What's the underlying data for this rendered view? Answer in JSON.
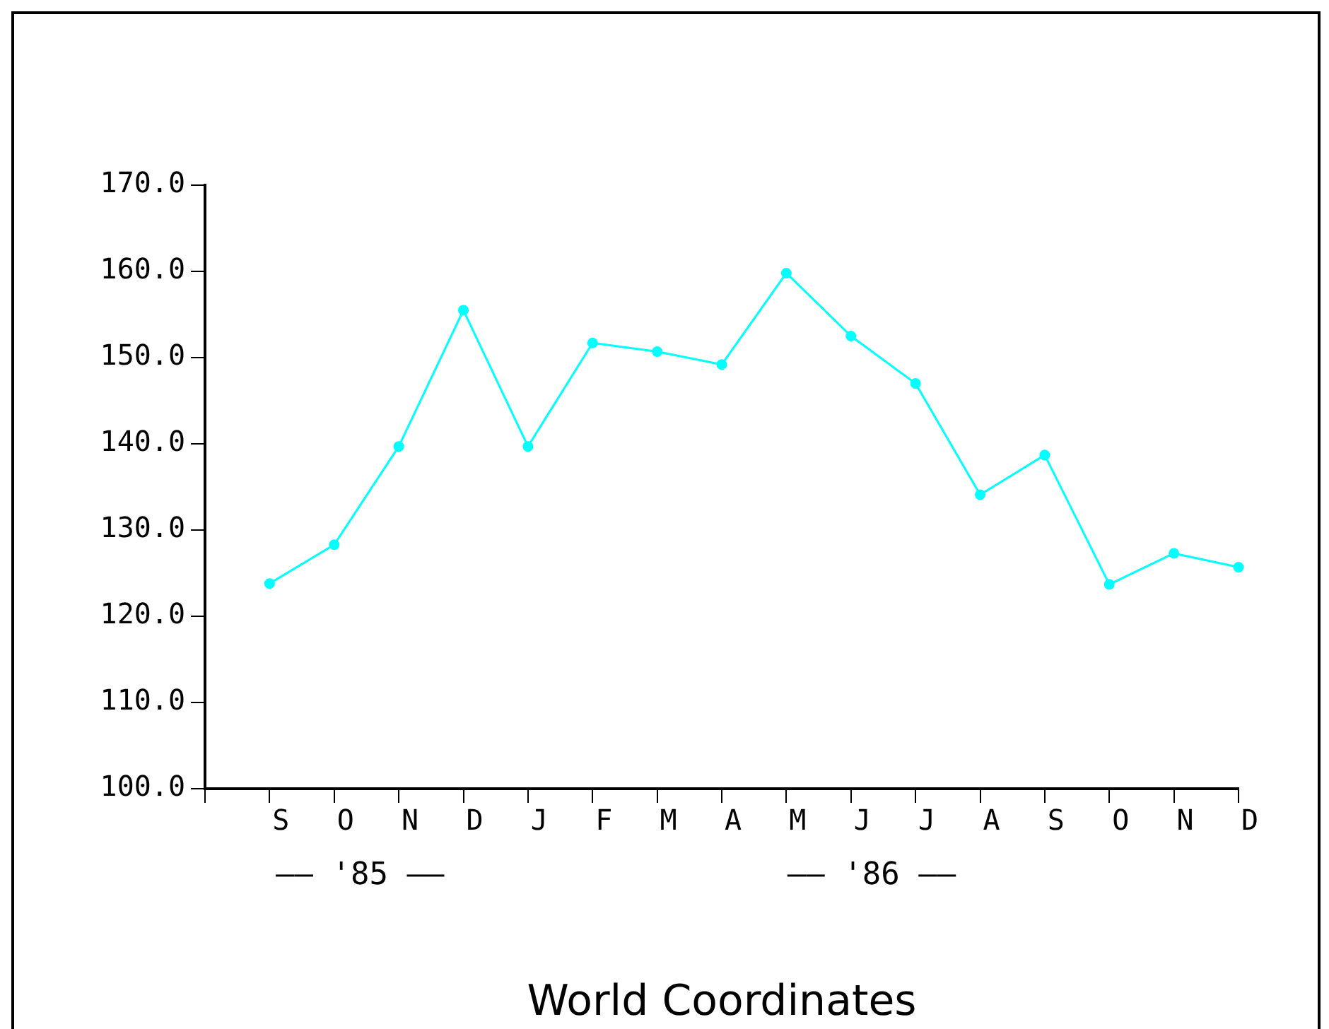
{
  "chart_data": {
    "type": "line",
    "xlabel": "World Coordinates",
    "categories": [
      null,
      "S",
      "O",
      "N",
      "D",
      "J",
      "F",
      "M",
      "A",
      "M",
      "J",
      "J",
      "A",
      "S",
      "O",
      "N",
      "D"
    ],
    "series": [
      {
        "color": "#00ffff",
        "values": [
          null,
          123.8,
          128.3,
          139.7,
          155.5,
          139.7,
          151.7,
          150.7,
          149.2,
          159.8,
          152.5,
          147.0,
          134.1,
          138.7,
          123.7,
          127.3,
          125.7
        ]
      }
    ],
    "ylim": [
      100,
      170
    ],
    "yticks": [
      {
        "value": 100,
        "label": "100.0"
      },
      {
        "value": 110,
        "label": "110.0"
      },
      {
        "value": 120,
        "label": "120.0"
      },
      {
        "value": 130,
        "label": "130.0"
      },
      {
        "value": 140,
        "label": "140.0"
      },
      {
        "value": 150,
        "label": "150.0"
      },
      {
        "value": 160,
        "label": "160.0"
      },
      {
        "value": 170,
        "label": "170.0"
      }
    ],
    "annotations": [
      "—— '85 ——",
      "—— '86 ——"
    ],
    "marker": "circle",
    "line_style": "solid",
    "legend": false,
    "grid": false
  }
}
